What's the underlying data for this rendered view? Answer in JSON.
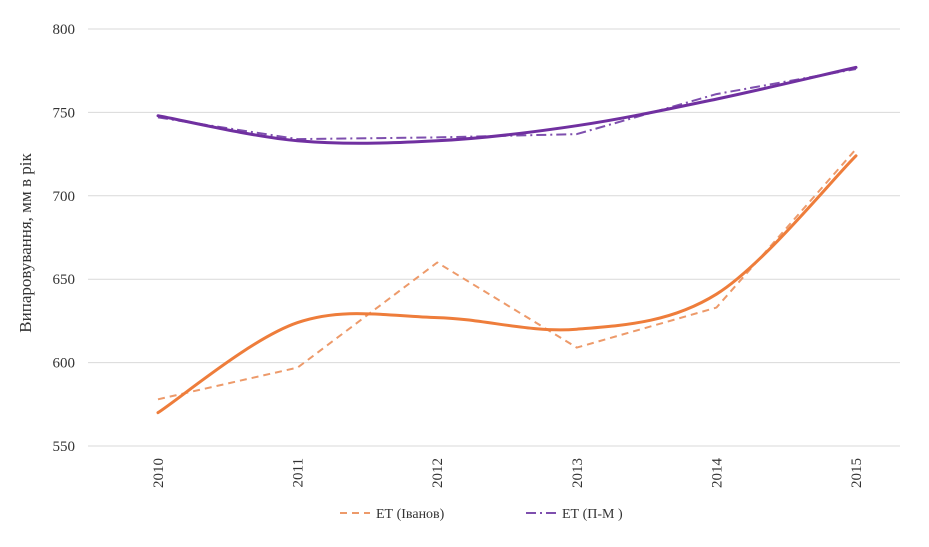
{
  "chart_data": {
    "type": "line",
    "ylabel": "Випаровування, мм в рік",
    "xlabel": "",
    "x": [
      "2010",
      "2011",
      "2012",
      "2013",
      "2014",
      "2015"
    ],
    "ylim": [
      550,
      800
    ],
    "yticks": [
      550,
      600,
      650,
      700,
      750,
      800
    ],
    "grid": "horizontal",
    "legend_position": "bottom",
    "series": [
      {
        "name": "ЕТ (Іванов)",
        "style": "dashed",
        "color": "#ED9A6A",
        "values": [
          578,
          597,
          660,
          609,
          633,
          728
        ],
        "in_legend": true
      },
      {
        "name": "",
        "style": "solid",
        "color": "#EE7D3B",
        "values": [
          570,
          624,
          627,
          620,
          641,
          724
        ],
        "in_legend": false
      },
      {
        "name": "ЕТ (П-М )",
        "style": "dashdot",
        "color": "#7E4FAE",
        "values": [
          747,
          734,
          735,
          737,
          761,
          776
        ],
        "in_legend": true
      },
      {
        "name": "",
        "style": "solid",
        "color": "#7030A0",
        "values": [
          748,
          733,
          733,
          742,
          758,
          777
        ],
        "in_legend": false
      }
    ]
  }
}
